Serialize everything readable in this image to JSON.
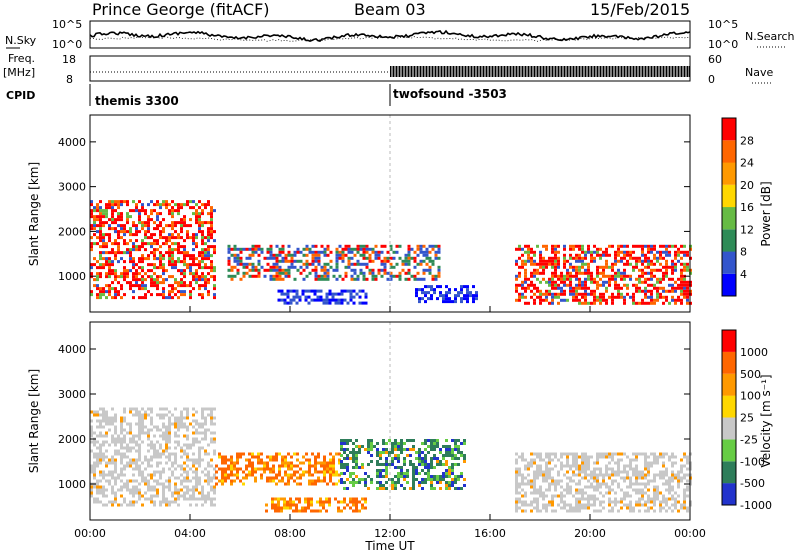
{
  "header": {
    "station": "Prince George (fitACF)",
    "beam": "Beam 03",
    "date": "15/Feb/2015"
  },
  "noise_panel": {
    "left_label": "N.Sky",
    "right_label": "N.Search",
    "left_ticks": [
      "10^5",
      "10^0"
    ],
    "right_ticks": [
      "10^5",
      "10^0"
    ]
  },
  "freq_panel": {
    "left_label_line1": "Freq.",
    "left_label_line2": "[MHz]",
    "left_ticks": [
      "18",
      "8"
    ],
    "right_label": "Nave",
    "right_ticks": [
      "60",
      "0"
    ]
  },
  "cpid_panel": {
    "label": "CPID",
    "modes": [
      {
        "name": "themis 3300",
        "start_hour": 0
      },
      {
        "name": "twofsound -3503",
        "start_hour": 12
      }
    ]
  },
  "colors": {
    "power": [
      "#0000ff",
      "#3355cc",
      "#2e8b57",
      "#66bb44",
      "#ffd700",
      "#ff9900",
      "#ff6600",
      "#ff0000"
    ],
    "velocity": [
      "#2233cc",
      "#2e7d5a",
      "#66cc44",
      "#c8c8c8",
      "#ffd700",
      "#ff9900",
      "#ff6600",
      "#ff0000"
    ],
    "scatter_grey": "#c8c8c8"
  },
  "chart_data": [
    {
      "type": "heatmap",
      "name": "Power",
      "xlabel": "",
      "ylabel": "Slant Range [km]",
      "xlim": [
        0,
        24
      ],
      "ylim": [
        200,
        4600
      ],
      "yticks": [
        1000,
        2000,
        3000,
        4000
      ],
      "colorbar": {
        "label": "Power [dB]",
        "ticks": [
          "28",
          "24",
          "20",
          "16",
          "12",
          "8",
          "4"
        ]
      },
      "scatter_regions": [
        {
          "hour_start": 0.0,
          "hour_end": 5.0,
          "range_start": 500,
          "range_end": 2700,
          "class": "high"
        },
        {
          "hour_start": 5.5,
          "hour_end": 14.0,
          "range_start": 900,
          "range_end": 1700,
          "class": "mid"
        },
        {
          "hour_start": 7.5,
          "hour_end": 11.0,
          "range_start": 400,
          "range_end": 700,
          "class": "low"
        },
        {
          "hour_start": 13.0,
          "hour_end": 15.5,
          "range_start": 400,
          "range_end": 800,
          "class": "low"
        },
        {
          "hour_start": 17.0,
          "hour_end": 24.0,
          "range_start": 400,
          "range_end": 1700,
          "class": "high"
        }
      ]
    },
    {
      "type": "heatmap",
      "name": "Velocity",
      "xlabel": "Time UT",
      "ylabel": "Slant Range [km]",
      "xlim": [
        0,
        24
      ],
      "ylim": [
        200,
        4600
      ],
      "yticks": [
        1000,
        2000,
        3000,
        4000
      ],
      "xticks": [
        "00:00",
        "04:00",
        "08:00",
        "12:00",
        "16:00",
        "20:00",
        "00:00"
      ],
      "colorbar": {
        "label": "Velocity [m s⁻¹]",
        "ticks": [
          "1000",
          "500",
          "100",
          "25",
          "-25",
          "-100",
          "-500",
          "-1000"
        ]
      },
      "scatter_regions": [
        {
          "hour_start": 0.0,
          "hour_end": 5.0,
          "range_start": 500,
          "range_end": 2700,
          "class": "ground"
        },
        {
          "hour_start": 5.0,
          "hour_end": 10.0,
          "range_start": 1000,
          "range_end": 1700,
          "class": "away_fast"
        },
        {
          "hour_start": 10.0,
          "hour_end": 15.0,
          "range_start": 900,
          "range_end": 2000,
          "class": "toward"
        },
        {
          "hour_start": 7.0,
          "hour_end": 11.0,
          "range_start": 400,
          "range_end": 700,
          "class": "away_fast"
        },
        {
          "hour_start": 17.0,
          "hour_end": 24.0,
          "range_start": 400,
          "range_end": 1700,
          "class": "ground"
        }
      ]
    }
  ]
}
